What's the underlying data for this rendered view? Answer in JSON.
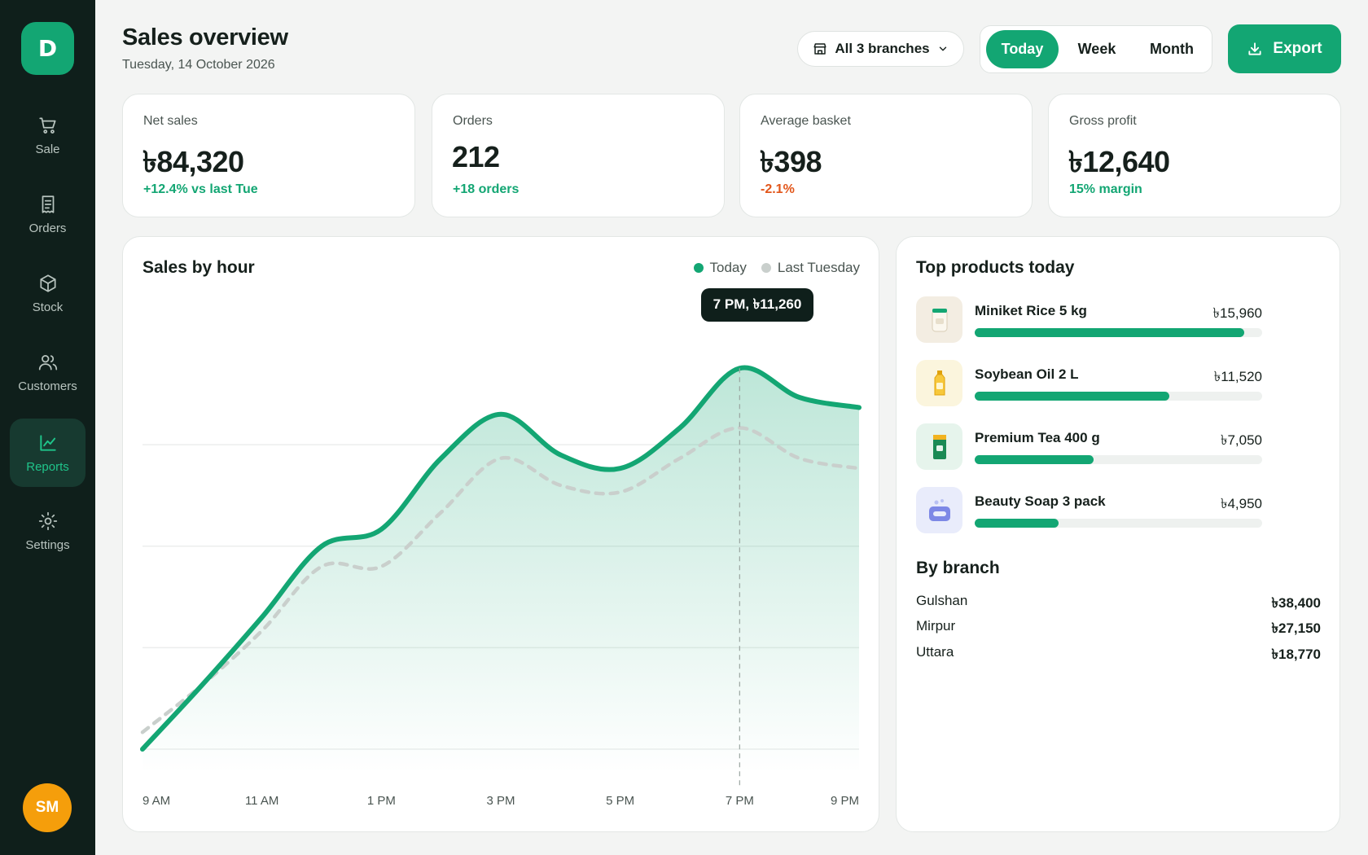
{
  "app": {
    "logo_letter": "D",
    "user_initials": "SM"
  },
  "sidebar": {
    "items": [
      {
        "label": "Sale",
        "icon": "cart-icon"
      },
      {
        "label": "Orders",
        "icon": "receipt-icon"
      },
      {
        "label": "Stock",
        "icon": "box-icon"
      },
      {
        "label": "Customers",
        "icon": "users-icon"
      },
      {
        "label": "Reports",
        "icon": "chart-icon",
        "active": true
      },
      {
        "label": "Settings",
        "icon": "gear-icon"
      }
    ]
  },
  "header": {
    "title": "Sales overview",
    "date": "Tuesday, 14 October 2026",
    "branch_select": "All 3 branches",
    "ranges": [
      "Today",
      "Week",
      "Month"
    ],
    "active_range": "Today",
    "export_label": "Export"
  },
  "kpis": [
    {
      "label": "Net sales",
      "value": "৳84,320",
      "delta": "+12.4% vs last Tue",
      "trend": "up"
    },
    {
      "label": "Orders",
      "value": "212",
      "delta": "+18 orders",
      "trend": "up"
    },
    {
      "label": "Average basket",
      "value": "৳398",
      "delta": "-2.1%",
      "trend": "down"
    },
    {
      "label": "Gross profit",
      "value": "৳12,640",
      "delta": "15% margin",
      "trend": "up"
    }
  ],
  "sales_chart": {
    "title": "Sales by hour",
    "legend": [
      {
        "label": "Today",
        "color": "#13a673"
      },
      {
        "label": "Last Tuesday",
        "color": "#c9cfcc"
      }
    ],
    "tooltip": "7 PM, ৳11,260"
  },
  "chart_data": {
    "type": "line",
    "title": "Sales by hour",
    "x_ticks": [
      "9 AM",
      "11 AM",
      "1 PM",
      "3 PM",
      "5 PM",
      "7 PM",
      "9 PM"
    ],
    "x": [
      9,
      10,
      11,
      12,
      13,
      14,
      15,
      16,
      17,
      18,
      19,
      20,
      21
    ],
    "series": [
      {
        "name": "Today",
        "values": [
          0,
          1900,
          3900,
          6000,
          6500,
          8600,
          9900,
          8700,
          8300,
          9500,
          11260,
          10400,
          10100
        ],
        "color": "#13a673",
        "style": "solid-area"
      },
      {
        "name": "Last Tuesday",
        "values": [
          500,
          1900,
          3500,
          5400,
          5400,
          7000,
          8600,
          7800,
          7600,
          8600,
          9500,
          8600,
          8300
        ],
        "color": "#c9cfcc",
        "style": "dashed"
      }
    ],
    "highlight": {
      "x": 19,
      "value": 11260
    },
    "ylim": [
      0,
      13000
    ],
    "grid": true,
    "legend_position": "top-right"
  },
  "top_products": {
    "title": "Top products today",
    "items": [
      {
        "name": "Miniket Rice 5 kg",
        "amount": "৳15,960",
        "value": 15960,
        "thumb": "rice-bag-icon",
        "bg": "#f3ede2"
      },
      {
        "name": "Soybean Oil 2 L",
        "amount": "৳11,520",
        "value": 11520,
        "thumb": "oil-bottle-icon",
        "bg": "#fbf5dd"
      },
      {
        "name": "Premium Tea 400 g",
        "amount": "৳7,050",
        "value": 7050,
        "thumb": "tea-box-icon",
        "bg": "#e6f4ec"
      },
      {
        "name": "Beauty Soap 3 pack",
        "amount": "৳4,950",
        "value": 4950,
        "thumb": "soap-icon",
        "bg": "#e9ecfb"
      }
    ]
  },
  "by_branch": {
    "title": "By branch",
    "rows": [
      {
        "name": "Gulshan",
        "amount": "৳38,400"
      },
      {
        "name": "Mirpur",
        "amount": "৳27,150"
      },
      {
        "name": "Uttara",
        "amount": "৳18,770"
      }
    ]
  }
}
